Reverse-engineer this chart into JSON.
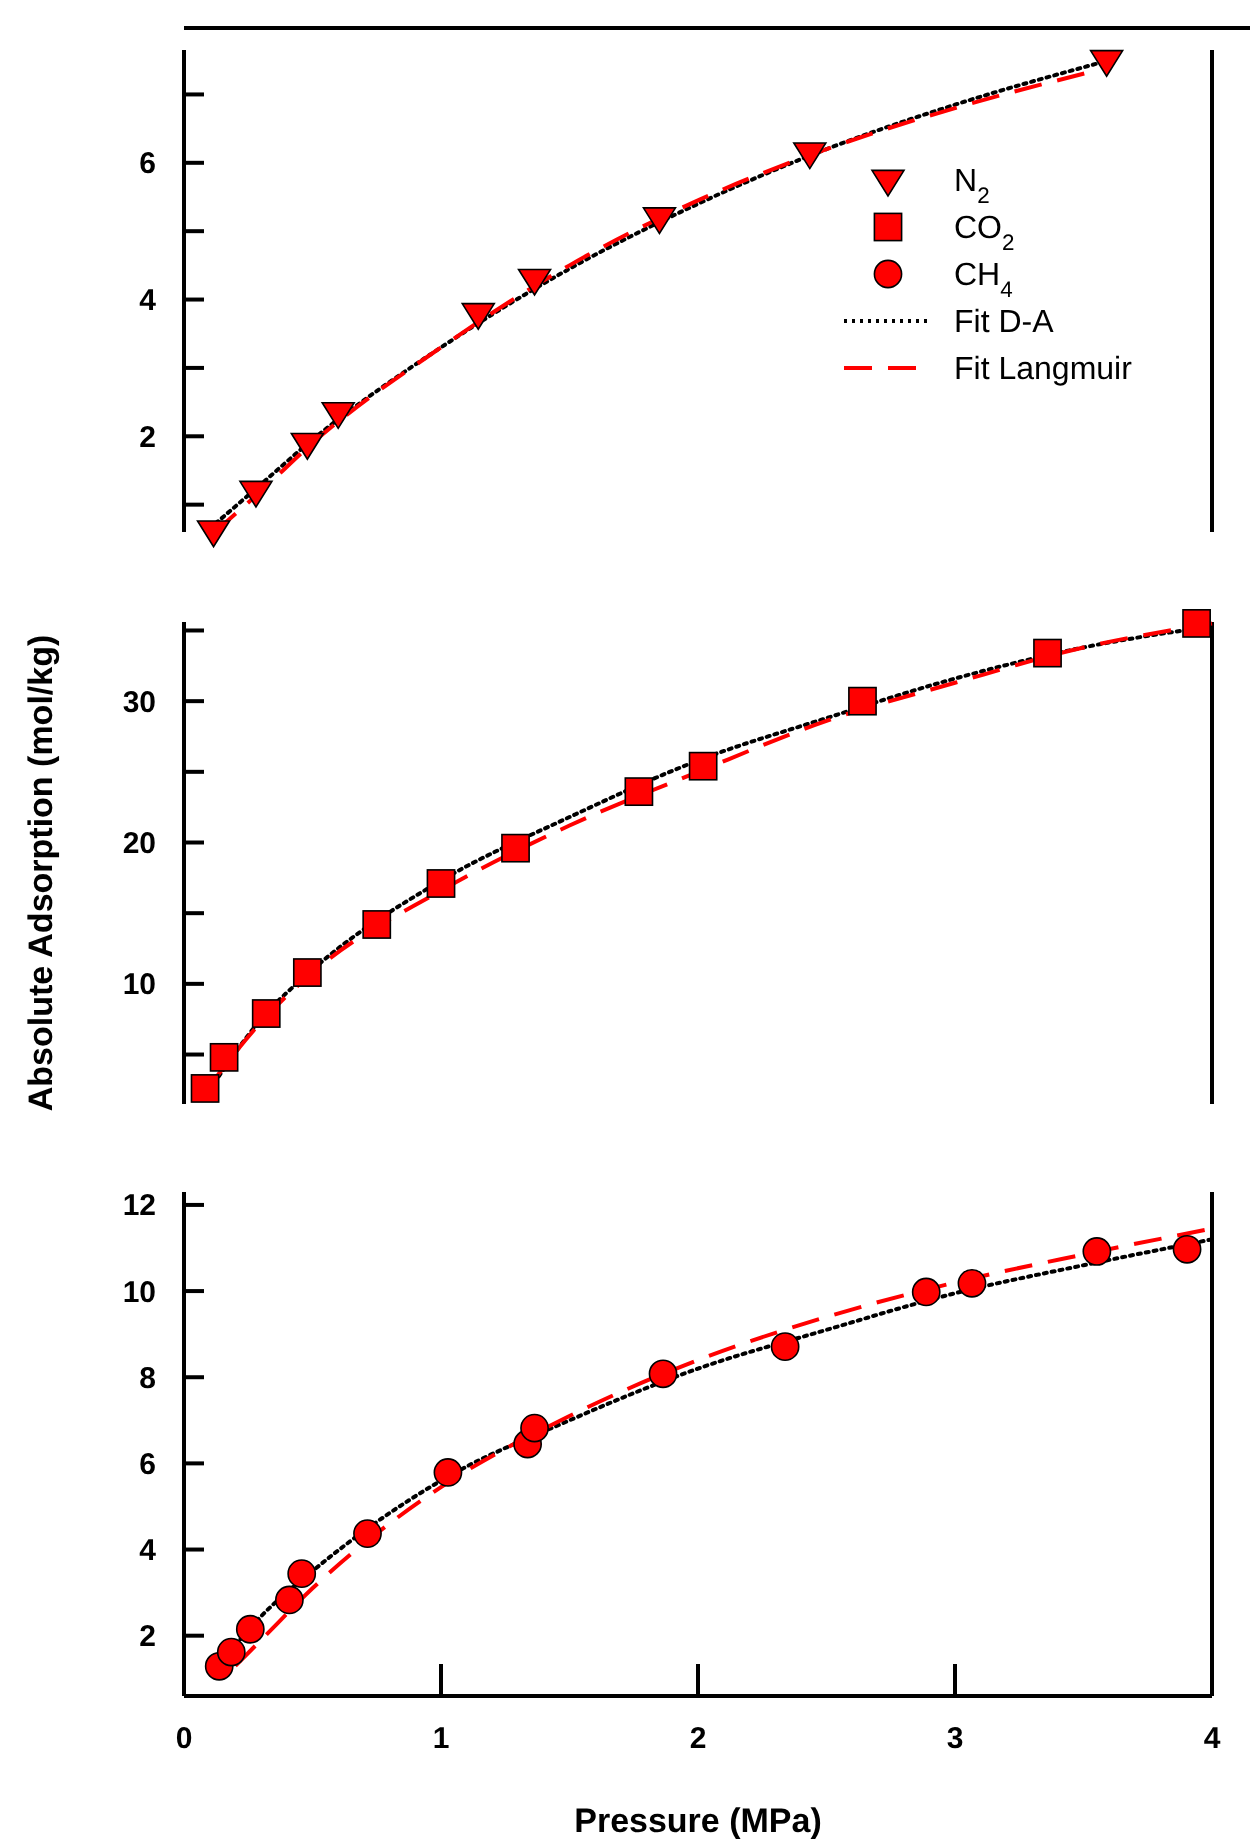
{
  "chart_data": [
    {
      "type": "scatter",
      "xlim": [
        0,
        4
      ],
      "ylim": [
        0.6,
        7.65
      ],
      "yticks": [
        {
          "value": 1,
          "label": null
        },
        2,
        {
          "value": 3,
          "label": null
        },
        4,
        {
          "value": 5,
          "label": null
        },
        6,
        {
          "value": 7,
          "label": null
        }
      ],
      "tick_labels": "y",
      "legend": "right",
      "grid": false,
      "series": [
        {
          "name": "N$_{2}$",
          "marker": "triangle",
          "color": "#ff0000",
          "x": [
            0.115,
            0.28,
            0.48,
            0.6,
            1.145,
            1.364,
            1.85,
            2.435,
            3.59
          ],
          "values": [
            0.62,
            1.2,
            1.9,
            2.35,
            3.8,
            4.3,
            5.2,
            6.15,
            7.5
          ]
        },
        {
          "name": "Fit D-A",
          "type": "line",
          "marker": "none",
          "line_style": "dotted",
          "color": "#000000",
          "x": [
            0.1,
            0.3,
            0.5,
            1,
            1.5,
            2,
            2.5,
            3,
            3.6
          ],
          "values": [
            0.65,
            1.3,
            1.95,
            3.3,
            4.45,
            5.4,
            6.2,
            6.85,
            7.5
          ]
        },
        {
          "name": "Fit Langmuir",
          "type": "line",
          "marker": "none",
          "line_style": "dashed",
          "color": "#ff0000",
          "x": [
            0.12,
            0.3,
            0.5,
            1,
            1.5,
            2,
            2.5,
            3,
            3.55
          ],
          "values": [
            0.6,
            1.2,
            1.9,
            3.3,
            4.5,
            5.45,
            6.2,
            6.8,
            7.35
          ]
        }
      ]
    },
    {
      "type": "scatter",
      "xlim": [
        0,
        4
      ],
      "ylim": [
        1.5,
        35.6
      ],
      "yticks": [
        {
          "value": 5,
          "label": null
        },
        10,
        {
          "value": 15,
          "label": null
        },
        20,
        {
          "value": 25,
          "label": null
        },
        30,
        {
          "value": 35,
          "label": null
        }
      ],
      "tick_labels": "y",
      "ylabel": "Absolute Adsorption (mol/kg)",
      "grid": false,
      "series": [
        {
          "name": "CO$_{2}$",
          "marker": "square",
          "color": "#ff0000",
          "x": [
            0.082,
            0.156,
            0.32,
            0.48,
            0.75,
            1.0,
            1.29,
            1.77,
            2.02,
            2.64,
            3.36,
            3.94
          ],
          "values": [
            2.6,
            4.8,
            7.9,
            10.8,
            14.2,
            17.1,
            19.6,
            23.6,
            25.4,
            30.0,
            33.4,
            35.5
          ]
        },
        {
          "type": "line",
          "marker": "none",
          "line_style": "dotted",
          "color": "#000000",
          "x": [
            0.1,
            0.3,
            0.5,
            1,
            1.5,
            2,
            2.5,
            3,
            3.5,
            4
          ],
          "values": [
            2.5,
            7.5,
            11,
            17.3,
            21.8,
            25.8,
            28.8,
            31.6,
            33.8,
            35.3
          ]
        },
        {
          "type": "line",
          "marker": "none",
          "line_style": "dashed",
          "color": "#ff0000",
          "x": [
            0.1,
            0.3,
            0.5,
            1,
            1.5,
            2,
            2.5,
            3,
            3.5,
            4
          ],
          "values": [
            2.8,
            7.3,
            10.8,
            16.6,
            21.2,
            25.0,
            28.6,
            31.3,
            33.8,
            35.5
          ]
        }
      ]
    },
    {
      "type": "scatter",
      "xlim": [
        0,
        4
      ],
      "xticks": [
        0,
        1,
        2,
        3,
        4
      ],
      "ylim": [
        0.6,
        12.3
      ],
      "yticks": [
        2,
        4,
        6,
        8,
        10,
        12
      ],
      "xlabel": "Pressure (MPa)",
      "grid": false,
      "series": [
        {
          "name": "CH$_{4}$",
          "marker": "circle",
          "color": "#ff0000",
          "x": [
            0.137,
            0.184,
            0.258,
            0.41,
            0.458,
            0.714,
            1.027,
            1.337,
            1.364,
            1.864,
            2.339,
            2.888,
            3.066,
            3.552,
            3.903
          ],
          "values": [
            1.29,
            1.62,
            2.15,
            2.83,
            3.44,
            4.37,
            5.79,
            6.45,
            6.82,
            8.08,
            8.71,
            9.98,
            10.18,
            10.92,
            10.97
          ]
        },
        {
          "type": "line",
          "marker": "none",
          "line_style": "dotted",
          "color": "#000000",
          "x": [
            0.14,
            0.3,
            0.5,
            1,
            1.5,
            2,
            2.5,
            3,
            3.5,
            4
          ],
          "values": [
            1.35,
            2.45,
            3.5,
            5.6,
            7.0,
            8.2,
            9.1,
            9.95,
            10.6,
            11.2
          ]
        },
        {
          "type": "line",
          "marker": "none",
          "line_style": "dashed",
          "color": "#ff0000",
          "x": [
            0.2,
            0.3,
            0.5,
            1,
            1.5,
            2,
            2.5,
            3,
            3.5,
            4
          ],
          "values": [
            1.3,
            1.9,
            3.1,
            5.45,
            7.1,
            8.4,
            9.4,
            10.2,
            10.85,
            11.45
          ]
        }
      ]
    }
  ]
}
